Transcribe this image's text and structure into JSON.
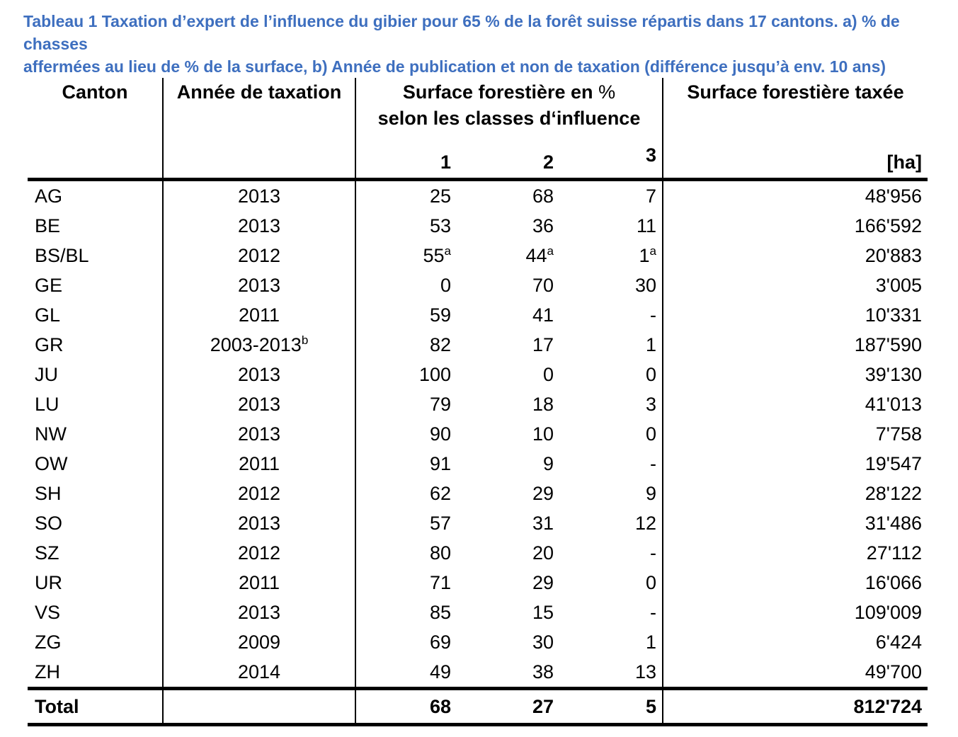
{
  "title": {
    "line1": "Tableau 1 Taxation d’expert de l’influence du gibier pour 65 % de la forêt suisse répartis dans 17 cantons. a) % de chasses",
    "line2": "affermées au lieu de % de la surface, b) Année de publication et non de taxation (différence jusqu’à env. 10 ans)",
    "color": "#3E6FBF"
  },
  "table": {
    "headers": {
      "canton": "Canton",
      "year": "Année de taxation",
      "classes_line1_main": "Surface forestière en",
      "classes_line1_pct": "%",
      "classes_line2": "selon les classes d‘influence",
      "class_cols": [
        "1",
        "2",
        "3"
      ],
      "area": "Surface forestière taxée",
      "area_unit": "[ha]"
    },
    "rows": [
      {
        "canton": "AG",
        "year": "2013",
        "c1": "25",
        "c2": "68",
        "c3": "7",
        "area": "48'956"
      },
      {
        "canton": "BE",
        "year": "2013",
        "c1": "53",
        "c2": "36",
        "c3": "11",
        "area": "166'592"
      },
      {
        "canton": "BS/BL",
        "year": "2012",
        "c1": "55",
        "c1_sup": "a",
        "c2": "44",
        "c2_sup": "a",
        "c3": "1",
        "c3_sup": "a",
        "area": "20'883"
      },
      {
        "canton": "GE",
        "year": "2013",
        "c1": "0",
        "c2": "70",
        "c3": "30",
        "area": "3'005"
      },
      {
        "canton": "GL",
        "year": "2011",
        "c1": "59",
        "c2": "41",
        "c3": "-",
        "area": "10'331"
      },
      {
        "canton": "GR",
        "year": "2003-2013",
        "year_sup": "b",
        "c1": "82",
        "c2": "17",
        "c3": "1",
        "area": "187'590"
      },
      {
        "canton": "JU",
        "year": "2013",
        "c1": "100",
        "c2": "0",
        "c3": "0",
        "area": "39'130"
      },
      {
        "canton": "LU",
        "year": "2013",
        "c1": "79",
        "c2": "18",
        "c3": "3",
        "area": "41'013"
      },
      {
        "canton": "NW",
        "year": "2013",
        "c1": "90",
        "c2": "10",
        "c3": "0",
        "area": "7'758"
      },
      {
        "canton": "OW",
        "year": "2011",
        "c1": "91",
        "c2": "9",
        "c3": "-",
        "area": "19'547"
      },
      {
        "canton": "SH",
        "year": "2012",
        "c1": "62",
        "c2": "29",
        "c3": "9",
        "area": "28'122"
      },
      {
        "canton": "SO",
        "year": "2013",
        "c1": "57",
        "c2": "31",
        "c3": "12",
        "area": "31'486"
      },
      {
        "canton": "SZ",
        "year": "2012",
        "c1": "80",
        "c2": "20",
        "c3": "-",
        "area": "27'112"
      },
      {
        "canton": "UR",
        "year": "2011",
        "c1": "71",
        "c2": "29",
        "c3": "0",
        "area": "16'066"
      },
      {
        "canton": "VS",
        "year": "2013",
        "c1": "85",
        "c2": "15",
        "c3": "-",
        "area": "109'009"
      },
      {
        "canton": "ZG",
        "year": "2009",
        "c1": "69",
        "c2": "30",
        "c3": "1",
        "area": "6'424"
      },
      {
        "canton": "ZH",
        "year": "2014",
        "c1": "49",
        "c2": "38",
        "c3": "13",
        "area": "49'700"
      }
    ],
    "total": {
      "label": "Total",
      "c1": "68",
      "c2": "27",
      "c3": "5",
      "area": "812'724"
    }
  }
}
